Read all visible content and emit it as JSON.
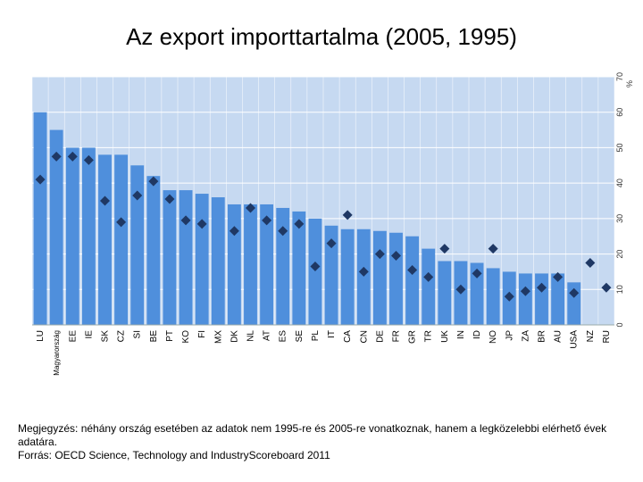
{
  "title": "Az export importtartalma (2005, 1995)",
  "note": "Megjegyzés: néhány ország esetében az adatok nem 1995-re és 2005-re vonatkoznak, hanem a legközelebbi elérhető évek adatára.",
  "source": "Forrás: OECD Science, Technology and IndustryScoreboard 2011",
  "colors": {
    "plot_bg": "#c6d9f1",
    "bar": "#4f8fdc",
    "marker": "#1f3864",
    "grid": "#ffffff"
  },
  "chart_data": {
    "type": "bar",
    "title": "Az export importtartalma (2005, 1995)",
    "xlabel": "",
    "ylabel": "%",
    "ylim": [
      0,
      70
    ],
    "yticks": [
      "0",
      "10",
      "20",
      "30",
      "40",
      "50",
      "60",
      "70"
    ],
    "y_axis_side": "right",
    "grid": true,
    "categories": [
      "LU",
      "Magyarország",
      "EE",
      "IE",
      "SK",
      "CZ",
      "SI",
      "BE",
      "PT",
      "KO",
      "FI",
      "MX",
      "DK",
      "NL",
      "AT",
      "ES",
      "SE",
      "PL",
      "IT",
      "CA",
      "CN",
      "DE",
      "FR",
      "GR",
      "TR",
      "UK",
      "IN",
      "ID",
      "NO",
      "JP",
      "ZA",
      "BR",
      "AU",
      "USA",
      "NZ",
      "RU"
    ],
    "series": [
      {
        "name": "2005",
        "type": "bar",
        "values": [
          60,
          55,
          50,
          50,
          48,
          48,
          45,
          42,
          38,
          38,
          37,
          36,
          34,
          34,
          34,
          33,
          32,
          30,
          28,
          27,
          27,
          26.5,
          26,
          25,
          21.5,
          18,
          18,
          17.5,
          16,
          15,
          14.5,
          14.5,
          14.5,
          12,
          null,
          null
        ]
      },
      {
        "name": "1995",
        "type": "marker",
        "values": [
          41,
          47.5,
          47.5,
          46.5,
          35,
          29,
          36.5,
          40.5,
          35.5,
          29.5,
          28.5,
          null,
          26.5,
          33,
          29.5,
          26.5,
          28.5,
          16.5,
          23,
          31,
          15,
          20,
          19.5,
          15.5,
          13.5,
          21.5,
          10,
          14.5,
          21.5,
          8,
          9.5,
          10.5,
          13.5,
          9,
          17.5,
          10.5
        ]
      }
    ]
  }
}
